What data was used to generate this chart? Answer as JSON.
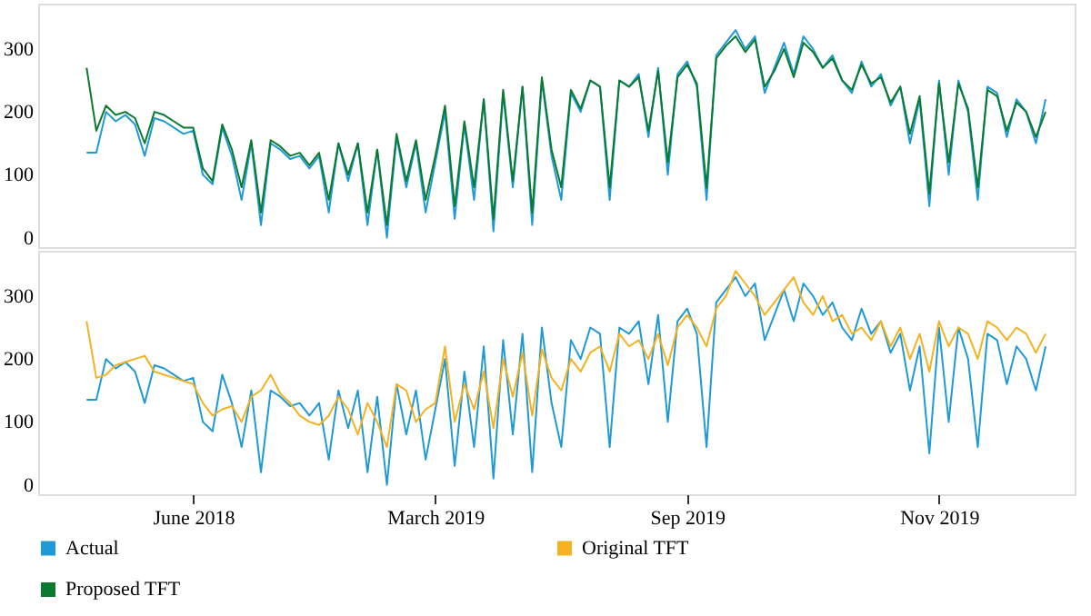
{
  "chart_data": [
    {
      "type": "line",
      "categories": [
        null,
        null,
        null,
        null,
        null,
        null,
        null,
        null,
        null,
        null,
        null,
        null,
        null,
        null,
        null,
        null,
        null,
        null,
        null,
        null,
        null,
        null,
        null,
        null,
        null,
        null,
        null,
        null,
        null,
        null,
        null,
        null,
        null,
        null,
        null,
        null,
        null,
        null,
        null,
        null,
        null,
        null,
        null,
        null,
        null,
        null,
        null,
        null,
        null,
        null,
        null,
        null,
        null,
        null,
        null,
        null,
        null,
        null,
        null,
        null,
        null,
        null,
        null,
        null,
        null,
        null,
        null,
        null,
        null,
        null,
        null,
        null,
        null,
        null,
        null,
        null,
        null,
        null,
        null,
        null,
        null,
        null,
        null,
        null,
        null,
        null,
        null,
        null,
        null,
        null,
        null,
        null,
        null,
        null,
        null,
        null,
        null,
        null,
        null,
        null
      ],
      "ylim": [
        -15,
        372
      ],
      "yticks": [
        0,
        100,
        200,
        300
      ],
      "tick_labels": "y",
      "grid": false,
      "legend": "bottom",
      "series": [
        {
          "name": "Actual",
          "color": "#1f9ad6",
          "values": [
            135,
            135,
            200,
            185,
            195,
            180,
            130,
            190,
            185,
            175,
            165,
            170,
            100,
            85,
            175,
            130,
            60,
            150,
            20,
            150,
            140,
            125,
            130,
            110,
            130,
            40,
            150,
            90,
            150,
            20,
            140,
            0,
            160,
            80,
            150,
            40,
            120,
            200,
            30,
            180,
            60,
            220,
            10,
            230,
            80,
            240,
            20,
            250,
            130,
            60,
            230,
            200,
            250,
            240,
            60,
            250,
            240,
            260,
            160,
            270,
            100,
            260,
            280,
            240,
            60,
            290,
            310,
            330,
            300,
            320,
            230,
            270,
            310,
            260,
            320,
            300,
            270,
            290,
            250,
            230,
            280,
            240,
            260,
            210,
            240,
            150,
            220,
            50,
            250,
            100,
            250,
            200,
            60,
            240,
            230,
            160,
            220,
            200,
            150,
            220
          ]
        },
        {
          "name": "Proposed TFT",
          "color": "#0a7a2e",
          "values": [
            270,
            170,
            210,
            195,
            200,
            190,
            150,
            200,
            195,
            185,
            175,
            175,
            110,
            90,
            180,
            140,
            80,
            155,
            40,
            155,
            145,
            130,
            135,
            115,
            135,
            60,
            150,
            100,
            150,
            40,
            140,
            20,
            165,
            90,
            155,
            60,
            130,
            210,
            50,
            185,
            80,
            220,
            30,
            235,
            90,
            240,
            40,
            255,
            140,
            80,
            235,
            205,
            250,
            240,
            80,
            250,
            240,
            255,
            170,
            265,
            120,
            255,
            275,
            245,
            80,
            285,
            305,
            320,
            295,
            315,
            240,
            265,
            300,
            255,
            310,
            295,
            270,
            285,
            250,
            235,
            275,
            245,
            255,
            215,
            240,
            165,
            225,
            70,
            245,
            120,
            245,
            205,
            80,
            235,
            225,
            170,
            215,
            200,
            160,
            200
          ]
        }
      ]
    },
    {
      "type": "line",
      "categories": [
        null,
        null,
        null,
        null,
        null,
        null,
        null,
        null,
        null,
        null,
        null,
        "June 2018",
        null,
        null,
        null,
        null,
        null,
        null,
        null,
        null,
        null,
        null,
        null,
        null,
        null,
        null,
        null,
        null,
        null,
        null,
        null,
        null,
        null,
        null,
        null,
        null,
        "March 2019",
        null,
        null,
        null,
        null,
        null,
        null,
        null,
        null,
        null,
        null,
        null,
        null,
        null,
        null,
        null,
        null,
        null,
        null,
        null,
        null,
        null,
        null,
        null,
        null,
        null,
        "Sep 2019",
        null,
        null,
        null,
        null,
        null,
        null,
        null,
        null,
        null,
        null,
        null,
        null,
        null,
        null,
        null,
        null,
        null,
        null,
        null,
        null,
        null,
        null,
        null,
        null,
        null,
        "Nov 2019",
        null,
        null,
        null,
        null,
        null,
        null,
        null,
        null,
        null,
        null,
        null
      ],
      "ylim": [
        -15,
        372
      ],
      "yticks": [
        0,
        100,
        200,
        300
      ],
      "grid": false,
      "legend": "bottom",
      "series": [
        {
          "name": "Actual",
          "color": "#1f9ad6",
          "values": [
            135,
            135,
            200,
            185,
            195,
            180,
            130,
            190,
            185,
            175,
            165,
            170,
            100,
            85,
            175,
            130,
            60,
            150,
            20,
            150,
            140,
            125,
            130,
            110,
            130,
            40,
            150,
            90,
            150,
            20,
            140,
            0,
            160,
            80,
            150,
            40,
            120,
            200,
            30,
            180,
            60,
            220,
            10,
            230,
            80,
            240,
            20,
            250,
            130,
            60,
            230,
            200,
            250,
            240,
            60,
            250,
            240,
            260,
            160,
            270,
            100,
            260,
            280,
            240,
            60,
            290,
            310,
            330,
            300,
            320,
            230,
            270,
            310,
            260,
            320,
            300,
            270,
            290,
            250,
            230,
            280,
            240,
            260,
            210,
            240,
            150,
            220,
            50,
            250,
            100,
            250,
            200,
            60,
            240,
            230,
            160,
            220,
            200,
            150,
            220
          ]
        },
        {
          "name": "Original TFT",
          "color": "#f5b220",
          "values": [
            260,
            170,
            175,
            190,
            195,
            200,
            205,
            180,
            175,
            170,
            165,
            160,
            130,
            110,
            120,
            125,
            100,
            140,
            150,
            175,
            145,
            130,
            110,
            100,
            95,
            110,
            140,
            120,
            80,
            130,
            100,
            60,
            160,
            150,
            100,
            120,
            130,
            220,
            100,
            160,
            120,
            180,
            90,
            200,
            140,
            210,
            110,
            215,
            170,
            150,
            200,
            180,
            210,
            220,
            180,
            240,
            220,
            230,
            200,
            240,
            190,
            250,
            270,
            250,
            220,
            280,
            300,
            340,
            320,
            300,
            270,
            290,
            310,
            330,
            290,
            270,
            300,
            260,
            270,
            240,
            250,
            230,
            260,
            220,
            250,
            200,
            240,
            180,
            260,
            220,
            250,
            240,
            200,
            260,
            250,
            230,
            250,
            240,
            210,
            240
          ]
        }
      ]
    }
  ]
}
